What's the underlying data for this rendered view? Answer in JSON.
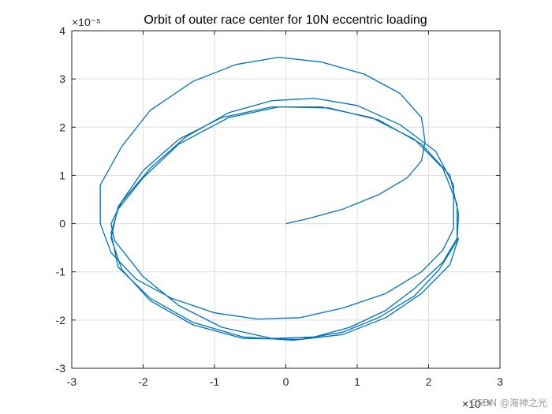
{
  "watermark": "CSDN @海神之光",
  "chart_data": {
    "type": "line",
    "title": "Orbit of outer race center for 10N eccentric loading",
    "xlabel": "",
    "ylabel": "",
    "xlim": [
      -3,
      3
    ],
    "ylim": [
      -3,
      4
    ],
    "x_scale_label": "×10⁻⁵",
    "y_scale_label": "×10⁻⁵",
    "xticks": [
      -3,
      -2,
      -1,
      0,
      1,
      2,
      3
    ],
    "yticks": [
      -3,
      -2,
      -1,
      0,
      1,
      2,
      3,
      4
    ],
    "xtick_labels": [
      "-3",
      "-2",
      "-1",
      "0",
      "1",
      "2",
      "3"
    ],
    "ytick_labels": [
      "-3",
      "-2",
      "-1",
      "0",
      "1",
      "2",
      "3",
      "4"
    ],
    "grid": true,
    "color": "#0072BD",
    "series": [
      {
        "name": "",
        "x": [
          0,
          0.3,
          0.8,
          1.3,
          1.7,
          1.9,
          1.95,
          1.9,
          1.6,
          1.1,
          0.5,
          -0.1,
          -0.7,
          -1.3,
          -1.9,
          -2.3,
          -2.6,
          -2.6,
          -2.45,
          -2.1,
          -1.6,
          -1.0,
          -0.4,
          0.2,
          0.8,
          1.4,
          1.9,
          2.2,
          2.35,
          2.35,
          2.1,
          1.6,
          1.0,
          0.4,
          -0.2,
          -0.8,
          -1.4,
          -1.9,
          -2.3,
          -2.45,
          -2.4,
          -2.0,
          -1.5,
          -0.9,
          -0.2,
          0.4,
          0.9,
          1.4,
          1.8,
          2.2,
          2.4,
          2.4,
          2.2,
          1.8,
          1.2,
          0.5,
          -0.2,
          -0.9,
          -1.5,
          -2.0,
          -2.35,
          -2.45,
          -2.3,
          -1.9,
          -1.3,
          -0.6,
          0.2,
          0.8,
          1.3,
          1.8,
          2.15,
          2.4,
          2.42,
          2.3,
          1.9,
          1.3,
          0.6,
          -0.1,
          -0.8,
          -1.5,
          -2.0,
          -2.35,
          -2.45,
          -2.35,
          -1.9,
          -1.3,
          -0.6,
          0.1,
          0.8,
          1.4,
          1.9,
          2.3,
          2.42
        ],
        "y": [
          0,
          0.1,
          0.3,
          0.6,
          0.95,
          1.3,
          1.7,
          2.2,
          2.7,
          3.1,
          3.35,
          3.45,
          3.3,
          2.95,
          2.35,
          1.6,
          0.8,
          0.0,
          -0.6,
          -1.15,
          -1.55,
          -1.85,
          -1.98,
          -1.95,
          -1.75,
          -1.45,
          -1.0,
          -0.55,
          -0.1,
          0.8,
          1.5,
          2.05,
          2.45,
          2.6,
          2.55,
          2.3,
          1.8,
          1.15,
          0.45,
          0.0,
          -0.35,
          -1.1,
          -1.7,
          -2.15,
          -2.38,
          -2.35,
          -2.15,
          -1.8,
          -1.35,
          -0.8,
          -0.3,
          0.4,
          1.15,
          1.75,
          2.2,
          2.42,
          2.42,
          2.2,
          1.75,
          1.1,
          0.35,
          -0.3,
          -0.95,
          -1.6,
          -2.1,
          -2.38,
          -2.4,
          -2.25,
          -1.95,
          -1.5,
          -0.95,
          -0.35,
          0.2,
          1.0,
          1.65,
          2.15,
          2.4,
          2.42,
          2.2,
          1.65,
          0.95,
          0.3,
          -0.2,
          -0.9,
          -1.55,
          -2.05,
          -2.35,
          -2.42,
          -2.3,
          -1.95,
          -1.45,
          -0.85,
          -0.3
        ]
      }
    ]
  }
}
